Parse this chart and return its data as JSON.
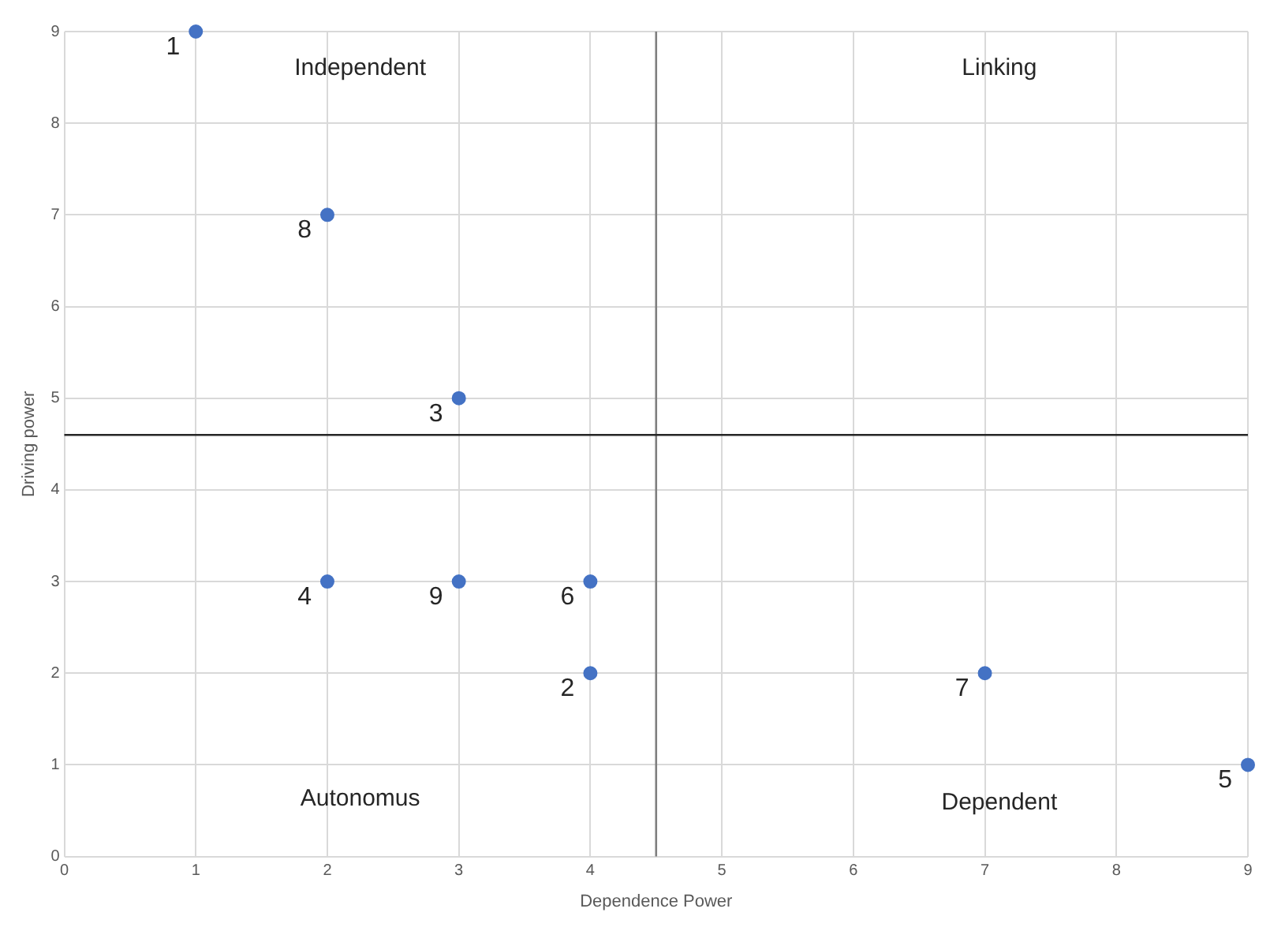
{
  "chart_data": {
    "type": "scatter",
    "xlabel": "Dependence Power",
    "ylabel": "Driving power",
    "x": [
      1,
      4,
      3,
      2,
      9,
      4,
      7,
      2,
      3
    ],
    "series": [
      {
        "color": "#4472c4",
        "values": [
          9,
          2,
          5,
          3,
          1,
          3,
          2,
          7,
          3
        ]
      }
    ],
    "xlim": [
      0,
      9
    ],
    "ylim": [
      0,
      9
    ],
    "xticks": [
      0,
      1,
      2,
      3,
      4,
      5,
      6,
      7,
      8,
      9
    ],
    "yticks": [
      0,
      1,
      2,
      3,
      4,
      5,
      6,
      7,
      8,
      9
    ],
    "grid": true,
    "legend": false,
    "marker": "circle",
    "ref_lines": [
      {
        "axis": "x",
        "value": 4.5,
        "color": "#7f7f7f"
      },
      {
        "axis": "y",
        "value": 4.6,
        "color": "#262626"
      }
    ],
    "annotations": [
      "Independent",
      "Linking",
      "Autonomus",
      "Dependent",
      {
        "text": "1",
        "x": 1,
        "y": 9
      },
      {
        "text": "2",
        "x": 4,
        "y": 2
      },
      {
        "text": "3",
        "x": 3,
        "y": 5
      },
      {
        "text": "4",
        "x": 2,
        "y": 3
      },
      {
        "text": "5",
        "x": 9,
        "y": 1
      },
      {
        "text": "6",
        "x": 4,
        "y": 3
      },
      {
        "text": "7",
        "x": 7,
        "y": 2
      },
      {
        "text": "8",
        "x": 2,
        "y": 7
      },
      {
        "text": "9",
        "x": 3,
        "y": 3
      }
    ]
  }
}
